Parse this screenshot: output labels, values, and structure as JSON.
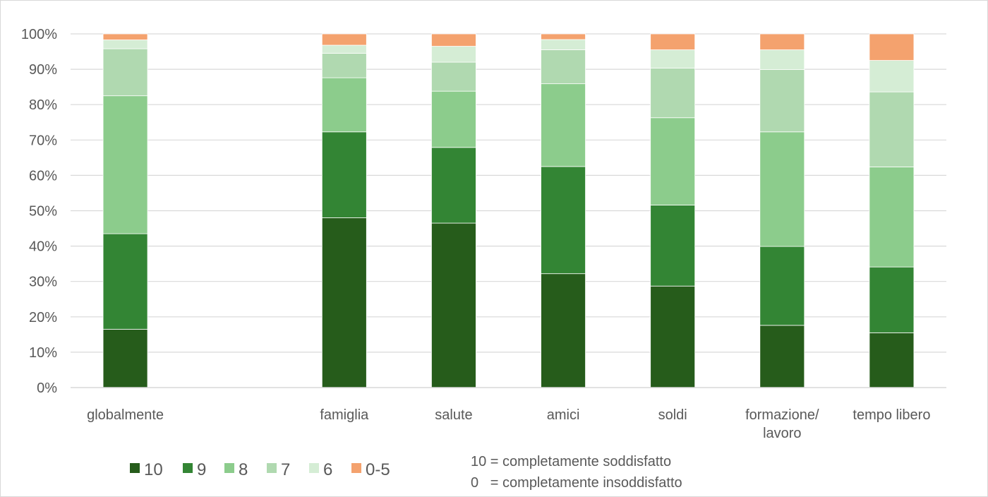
{
  "chart_data": {
    "type": "bar",
    "stacked": true,
    "categories": [
      "globalmente",
      "",
      "famiglia",
      "salute",
      "amici",
      "soldi",
      "formazione/\nlavoro",
      "tempo libero"
    ],
    "ylim": [
      0,
      100
    ],
    "yticks": [
      "0%",
      "10%",
      "20%",
      "30%",
      "40%",
      "50%",
      "60%",
      "70%",
      "80%",
      "90%",
      "100%"
    ],
    "grid": true,
    "legend_position": "bottom-left",
    "series": [
      {
        "name": "10",
        "color": "#265c1b",
        "values": [
          16.5,
          null,
          48.0,
          46.5,
          32.2,
          28.7,
          17.6,
          15.5
        ]
      },
      {
        "name": "9",
        "color": "#338534",
        "values": [
          27.0,
          null,
          24.3,
          21.4,
          30.3,
          22.9,
          22.3,
          18.6
        ]
      },
      {
        "name": "8",
        "color": "#8ccc8c",
        "values": [
          39.0,
          null,
          15.3,
          15.9,
          23.4,
          24.7,
          32.4,
          28.3
        ]
      },
      {
        "name": "7",
        "color": "#b0d9b0",
        "values": [
          13.3,
          null,
          6.9,
          8.2,
          9.6,
          14.0,
          17.6,
          21.2
        ]
      },
      {
        "name": "6",
        "color": "#d5edd5",
        "values": [
          2.5,
          null,
          2.3,
          4.5,
          2.9,
          5.2,
          5.6,
          8.9
        ]
      },
      {
        "name": "0-5",
        "color": "#f4a26e",
        "values": [
          1.7,
          null,
          3.2,
          3.5,
          1.6,
          4.5,
          4.5,
          7.5
        ]
      }
    ],
    "annotations": [
      "10 = completamente soddisfatto",
      "0   = completamente insoddisfatto"
    ]
  }
}
